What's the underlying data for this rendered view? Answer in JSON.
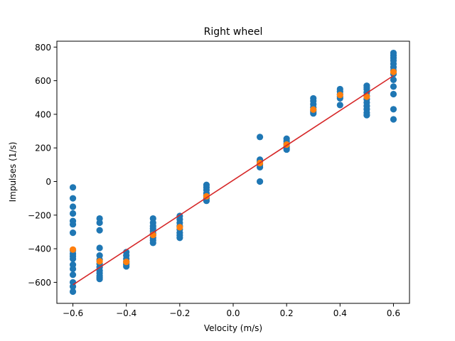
{
  "colors": {
    "raw": "#1f77b4",
    "mean": "#ff7f0e",
    "fit": "#d62728",
    "frame": "#000000"
  },
  "chart_data": {
    "type": "scatter",
    "title": "Right wheel",
    "xlabel": "Velocity (m/s)",
    "ylabel": "Impulses (1/s)",
    "xlim": [
      -0.66,
      0.66
    ],
    "ylim": [
      -725,
      835
    ],
    "xticks": [
      -0.6,
      -0.4,
      -0.2,
      0.0,
      0.2,
      0.4,
      0.6
    ],
    "xtick_labels": [
      "−0.6",
      "−0.4",
      "−0.2",
      "0.0",
      "0.2",
      "0.4",
      "0.6"
    ],
    "yticks": [
      -600,
      -400,
      -200,
      0,
      200,
      400,
      600,
      800
    ],
    "ytick_labels": [
      "−600",
      "−400",
      "−200",
      "0",
      "200",
      "400",
      "600",
      "800"
    ],
    "grid": false,
    "series": [
      {
        "kind": "scatter",
        "color": "#1f77b4",
        "points": [
          [
            -0.6,
            -35
          ],
          [
            -0.6,
            -100
          ],
          [
            -0.6,
            -150
          ],
          [
            -0.6,
            -190
          ],
          [
            -0.6,
            -235
          ],
          [
            -0.6,
            -255
          ],
          [
            -0.6,
            -305
          ],
          [
            -0.6,
            -410
          ],
          [
            -0.6,
            -430
          ],
          [
            -0.6,
            -445
          ],
          [
            -0.6,
            -460
          ],
          [
            -0.6,
            -495
          ],
          [
            -0.6,
            -520
          ],
          [
            -0.6,
            -555
          ],
          [
            -0.6,
            -600
          ],
          [
            -0.6,
            -625
          ],
          [
            -0.6,
            -655
          ],
          [
            -0.5,
            -220
          ],
          [
            -0.5,
            -245
          ],
          [
            -0.5,
            -290
          ],
          [
            -0.5,
            -395
          ],
          [
            -0.5,
            -440
          ],
          [
            -0.5,
            -465
          ],
          [
            -0.5,
            -490
          ],
          [
            -0.5,
            -510
          ],
          [
            -0.5,
            -530
          ],
          [
            -0.5,
            -545
          ],
          [
            -0.5,
            -560
          ],
          [
            -0.5,
            -570
          ],
          [
            -0.5,
            -580
          ],
          [
            -0.4,
            -420
          ],
          [
            -0.4,
            -440
          ],
          [
            -0.4,
            -460
          ],
          [
            -0.4,
            -475
          ],
          [
            -0.4,
            -485
          ],
          [
            -0.4,
            -495
          ],
          [
            -0.4,
            -505
          ],
          [
            -0.3,
            -220
          ],
          [
            -0.3,
            -245
          ],
          [
            -0.3,
            -265
          ],
          [
            -0.3,
            -280
          ],
          [
            -0.3,
            -295
          ],
          [
            -0.3,
            -310
          ],
          [
            -0.3,
            -320
          ],
          [
            -0.3,
            -335
          ],
          [
            -0.3,
            -350
          ],
          [
            -0.3,
            -365
          ],
          [
            -0.2,
            -205
          ],
          [
            -0.2,
            -225
          ],
          [
            -0.2,
            -245
          ],
          [
            -0.2,
            -265
          ],
          [
            -0.2,
            -285
          ],
          [
            -0.2,
            -305
          ],
          [
            -0.2,
            -320
          ],
          [
            -0.2,
            -335
          ],
          [
            -0.1,
            -20
          ],
          [
            -0.1,
            -35
          ],
          [
            -0.1,
            -50
          ],
          [
            -0.1,
            -70
          ],
          [
            -0.1,
            -85
          ],
          [
            -0.1,
            -100
          ],
          [
            -0.1,
            -115
          ],
          [
            0.1,
            265
          ],
          [
            0.1,
            130
          ],
          [
            0.1,
            120
          ],
          [
            0.1,
            110
          ],
          [
            0.1,
            100
          ],
          [
            0.1,
            85
          ],
          [
            0.1,
            0
          ],
          [
            0.2,
            255
          ],
          [
            0.2,
            240
          ],
          [
            0.2,
            225
          ],
          [
            0.2,
            210
          ],
          [
            0.2,
            200
          ],
          [
            0.2,
            190
          ],
          [
            0.3,
            495
          ],
          [
            0.3,
            480
          ],
          [
            0.3,
            460
          ],
          [
            0.3,
            440
          ],
          [
            0.3,
            425
          ],
          [
            0.3,
            415
          ],
          [
            0.3,
            405
          ],
          [
            0.4,
            550
          ],
          [
            0.4,
            535
          ],
          [
            0.4,
            520
          ],
          [
            0.4,
            505
          ],
          [
            0.4,
            495
          ],
          [
            0.4,
            455
          ],
          [
            0.5,
            570
          ],
          [
            0.5,
            560
          ],
          [
            0.5,
            550
          ],
          [
            0.5,
            530
          ],
          [
            0.5,
            510
          ],
          [
            0.5,
            490
          ],
          [
            0.5,
            470
          ],
          [
            0.5,
            450
          ],
          [
            0.5,
            430
          ],
          [
            0.5,
            410
          ],
          [
            0.5,
            395
          ],
          [
            0.6,
            765
          ],
          [
            0.6,
            750
          ],
          [
            0.6,
            735
          ],
          [
            0.6,
            720
          ],
          [
            0.6,
            700
          ],
          [
            0.6,
            680
          ],
          [
            0.6,
            660
          ],
          [
            0.6,
            640
          ],
          [
            0.6,
            605
          ],
          [
            0.6,
            565
          ],
          [
            0.6,
            520
          ],
          [
            0.6,
            430
          ],
          [
            0.6,
            370
          ]
        ]
      },
      {
        "kind": "scatter",
        "color": "#ff7f0e",
        "points": [
          [
            -0.6,
            -405
          ],
          [
            -0.5,
            -475
          ],
          [
            -0.4,
            -478
          ],
          [
            -0.3,
            -318
          ],
          [
            -0.2,
            -272
          ],
          [
            -0.1,
            -88
          ],
          [
            0.1,
            110
          ],
          [
            0.2,
            220
          ],
          [
            0.3,
            428
          ],
          [
            0.4,
            515
          ],
          [
            0.5,
            505
          ],
          [
            0.6,
            652
          ]
        ]
      },
      {
        "kind": "line",
        "color": "#d62728",
        "points": [
          [
            -0.6,
            -615
          ],
          [
            0.6,
            630
          ]
        ]
      }
    ]
  }
}
